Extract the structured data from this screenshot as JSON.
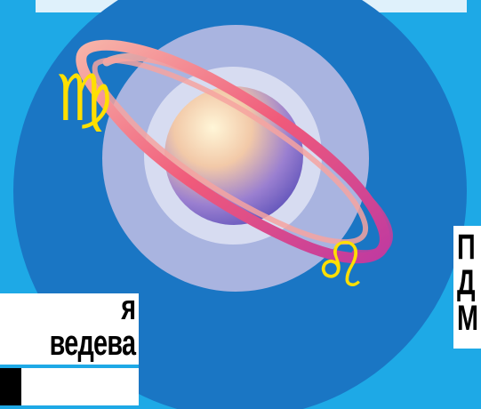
{
  "colors": {
    "background": "#1ea9e6",
    "disc": "#1a76c4",
    "halo_outer": "#a9b4e0",
    "halo_inner": "#d7dcf1",
    "ring": "#f0627a",
    "glyph": "#ffdf00"
  },
  "illustration": {
    "top_glyph": "♍",
    "bottom_glyph": "♌"
  },
  "caption_left": {
    "line1": "я",
    "line2": "ведева"
  },
  "caption_right": {
    "line1": "П",
    "line2": "Д",
    "line3": "М"
  }
}
